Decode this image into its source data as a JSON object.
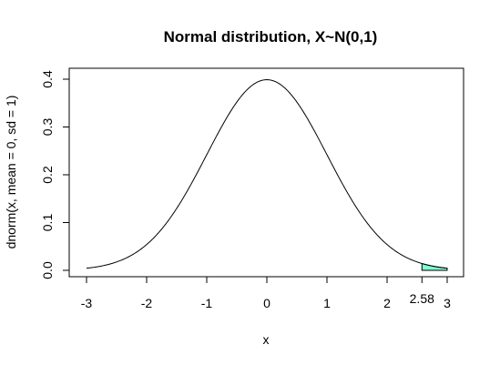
{
  "chart_data": {
    "type": "line",
    "title": "Normal distribution, X~N(0,1)",
    "xlabel": "x",
    "ylabel": "dnorm(x, mean = 0, sd = 1)",
    "xlim": [
      -3,
      3
    ],
    "ylim": [
      0,
      0.4
    ],
    "x_ticks": [
      "-3",
      "-2",
      "-1",
      "0",
      "1",
      "2",
      "3"
    ],
    "y_ticks": [
      "0.0",
      "0.1",
      "0.2",
      "0.3",
      "0.4"
    ],
    "series": [
      {
        "function": "dnorm",
        "mean": 0,
        "sd": 1,
        "x_range": [
          -3,
          3
        ]
      }
    ],
    "shaded_region": {
      "from": 2.58,
      "to": 3,
      "color": "#7fffd4"
    },
    "annotations": [
      {
        "text": "2.58",
        "x": 2.58
      }
    ],
    "grid": false,
    "legend": "none"
  }
}
